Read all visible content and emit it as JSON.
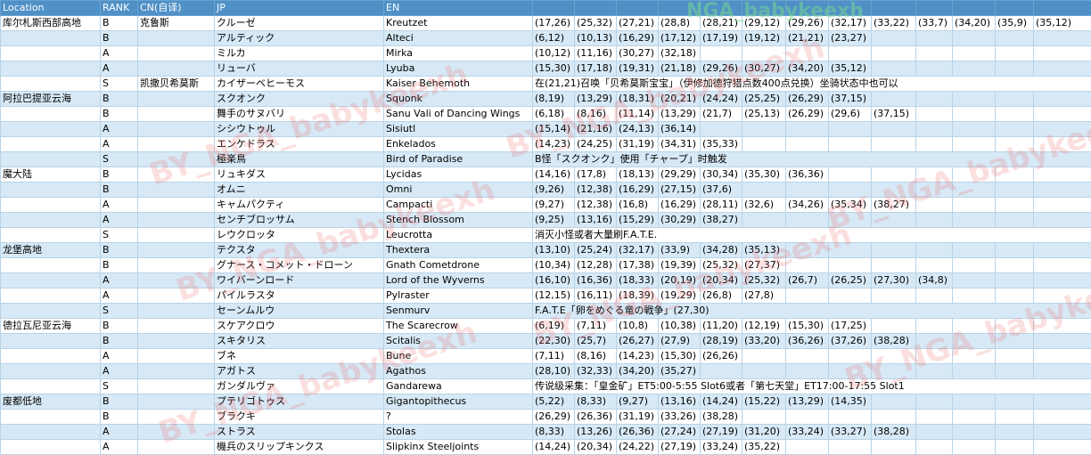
{
  "headers": [
    "Location",
    "RANK",
    "CN(自译)",
    "JP",
    "EN"
  ],
  "watermarks": [
    "BY_NGA_babykeexh",
    "NGA_babykeexh"
  ],
  "rows": [
    {
      "loc": "库尔札斯西部高地",
      "rank": "B",
      "cn": "克鲁斯",
      "jp": "クルーゼ",
      "en": "Kreutzet",
      "pos": [
        "(17,26)",
        "(25,32)",
        "(27,21)",
        "(28,8)",
        "(28,21)",
        "(29,12)",
        "(29,26)",
        "(32,17)",
        "(33,22)",
        "(33,7)",
        "(34,20)",
        "(35,9)",
        "(35,12)"
      ]
    },
    {
      "loc": "",
      "rank": "B",
      "cn": "",
      "jp": "アルティック",
      "en": "Alteci",
      "pos": [
        "(6,12)",
        "(10,13)",
        "(16,29)",
        "(17,12)",
        "(17,19)",
        "(19,12)",
        "(21,21)",
        "(23,27)"
      ]
    },
    {
      "loc": "",
      "rank": "A",
      "cn": "",
      "jp": "ミルカ",
      "en": "Mirka",
      "pos": [
        "(10,12)",
        "(11,16)",
        "(30,27)",
        "(32,18)"
      ]
    },
    {
      "loc": "",
      "rank": "A",
      "cn": "",
      "jp": "リューバ",
      "en": "Lyuba",
      "pos": [
        "(15,30)",
        "(17,18)",
        "(19,31)",
        "(21,18)",
        "(29,26)",
        "(30,27)",
        "(34,20)",
        "(35,12)"
      ]
    },
    {
      "loc": "",
      "rank": "S",
      "cn": "凯撒贝希莫斯",
      "jp": "カイザーベヒーモス",
      "en": "Kaiser Behemoth",
      "note": "在(21,21)召唤「贝希莫斯宝宝」（伊修加德狩猎点数400点兑换）坐骑状态中也可以"
    },
    {
      "loc": "阿拉巴提亚云海",
      "rank": "B",
      "cn": "",
      "jp": "スクオンク",
      "en": "Squonk",
      "pos": [
        "(8,19)",
        "(13,29)",
        "(18,31)",
        "(20,21)",
        "(24,24)",
        "(25,25)",
        "(26,29)",
        "(37,15)"
      ]
    },
    {
      "loc": "",
      "rank": "B",
      "cn": "",
      "jp": "舞手のサヌバリ",
      "en": "Sanu Vali of Dancing Wings",
      "pos": [
        "(6,18)",
        "(8,16)",
        "(11,14)",
        "(13,29)",
        "(21,7)",
        "(25,13)",
        "(26,29)",
        "(29,6)",
        "(37,15)"
      ]
    },
    {
      "loc": "",
      "rank": "A",
      "cn": "",
      "jp": "シシウトゥル",
      "en": "Sisiutl",
      "pos": [
        "(15,14)",
        "(21,16)",
        "(24,13)",
        "(36,14)"
      ]
    },
    {
      "loc": "",
      "rank": "A",
      "cn": "",
      "jp": "エンケドラス",
      "en": "Enkelados",
      "pos": [
        "(14,23)",
        "(24,25)",
        "(31,19)",
        "(34,31)",
        "(35,33)"
      ]
    },
    {
      "loc": "",
      "rank": "S",
      "cn": "",
      "jp": "極楽鳥",
      "en": "Bird of Paradise",
      "note": "B怪「スクオンク」使用「チャープ」时触发"
    },
    {
      "loc": "魔大陆",
      "rank": "B",
      "cn": "",
      "jp": "リュキダス",
      "en": "Lycidas",
      "pos": [
        "(14,16)",
        "(17,8)",
        "(18,13)",
        "(29,29)",
        "(30,34)",
        "(35,30)",
        "(36,36)"
      ]
    },
    {
      "loc": "",
      "rank": "B",
      "cn": "",
      "jp": "オムニ",
      "en": "Omni",
      "pos": [
        "(9,26)",
        "(12,38)",
        "(16,29)",
        "(27,15)",
        "(37,6)"
      ]
    },
    {
      "loc": "",
      "rank": "A",
      "cn": "",
      "jp": "キャムパクティ",
      "en": "Campacti",
      "pos": [
        "(9,27)",
        "(12,38)",
        "(16,8)",
        "(16,29)",
        "(28,11)",
        "(32,6)",
        "(34,26)",
        "(35,34)",
        "(38,27)"
      ]
    },
    {
      "loc": "",
      "rank": "A",
      "cn": "",
      "jp": "センチブロッサム",
      "en": "Stench Blossom",
      "pos": [
        "(9,25)",
        "(13,16)",
        "(15,29)",
        "(30,29)",
        "(38,27)"
      ]
    },
    {
      "loc": "",
      "rank": "S",
      "cn": "",
      "jp": "レウクロッタ",
      "en": "Leucrotta",
      "note": "消灭小怪或者大量刷F.A.T.E."
    },
    {
      "loc": "龙堡高地",
      "rank": "B",
      "cn": "",
      "jp": "テクスタ",
      "en": "Thextera",
      "pos": [
        "(13,10)",
        "(25,24)",
        "(32,17)",
        "(33,9)",
        "(34,28)",
        "(35,13)"
      ]
    },
    {
      "loc": "",
      "rank": "B",
      "cn": "",
      "jp": "グナース・コメット・ドローン",
      "en": "Gnath Cometdrone",
      "pos": [
        "(10,34)",
        "(12,28)",
        "(17,38)",
        "(19,39)",
        "(25,32)",
        "(27,37)"
      ]
    },
    {
      "loc": "",
      "rank": "A",
      "cn": "",
      "jp": "ワイバーンロード",
      "en": "Lord of the Wyverns",
      "pos": [
        "(16,10)",
        "(16,36)",
        "(18,33)",
        "(20,19)",
        "(20,34)",
        "(25,32)",
        "(26,7)",
        "(26,25)",
        "(27,30)",
        "(34,8)"
      ]
    },
    {
      "loc": "",
      "rank": "A",
      "cn": "",
      "jp": "パイルラスタ",
      "en": "Pylraster",
      "pos": [
        "(12,15)",
        "(16,11)",
        "(18,39)",
        "(19,29)",
        "(26,8)",
        "(27,8)"
      ]
    },
    {
      "loc": "",
      "rank": "S",
      "cn": "",
      "jp": "セーンムルウ",
      "en": "Senmurv",
      "note": "F.A.T.E「卵をめぐる竜の戦争」(27,30)"
    },
    {
      "loc": "德拉瓦尼亚云海",
      "rank": "B",
      "cn": "",
      "jp": "スケアクロウ",
      "en": "The Scarecrow",
      "pos": [
        "(6,19)",
        "(7,11)",
        "(10,8)",
        "(10,38)",
        "(11,20)",
        "(12,19)",
        "(15,30)",
        "(17,25)"
      ]
    },
    {
      "loc": "",
      "rank": "B",
      "cn": "",
      "jp": "スキタリス",
      "en": "Scitalis",
      "pos": [
        "(22,30)",
        "(25,7)",
        "(26,27)",
        "(27,9)",
        "(28,19)",
        "(33,20)",
        "(36,26)",
        "(37,26)",
        "(38,28)"
      ]
    },
    {
      "loc": "",
      "rank": "A",
      "cn": "",
      "jp": "ブネ",
      "en": "Bune",
      "pos": [
        "(7,11)",
        "(8,16)",
        "(14,23)",
        "(15,30)",
        "(26,26)"
      ]
    },
    {
      "loc": "",
      "rank": "A",
      "cn": "",
      "jp": "アガトス",
      "en": "Agathos",
      "pos": [
        "(28,10)",
        "(32,33)",
        "(34,20)",
        "(35,27)"
      ]
    },
    {
      "loc": "",
      "rank": "S",
      "cn": "",
      "jp": "ガンダルヴァ",
      "en": "Gandarewa",
      "note": "传说级采集：「皇金矿」ET5:00-5:55 Slot6或者「第七天堂」ET17:00-17:55 Slot1"
    },
    {
      "loc": "废都低地",
      "rank": "B",
      "cn": "",
      "jp": "プテリゴトゥス",
      "en": "Gigantopithecus",
      "pos": [
        "(5,22)",
        "(8,33)",
        "(9,27)",
        "(13,16)",
        "(14,24)",
        "(15,22)",
        "(13,29)",
        "(14,35)"
      ]
    },
    {
      "loc": "",
      "rank": "B",
      "cn": "",
      "jp": "ブラクキ",
      "en": "?",
      "pos": [
        "(26,29)",
        "(26,36)",
        "(31,19)",
        "(33,26)",
        "(38,28)"
      ]
    },
    {
      "loc": "",
      "rank": "A",
      "cn": "",
      "jp": "ストラス",
      "en": "Stolas",
      "pos": [
        "(8,33)",
        "(13,26)",
        "(26,36)",
        "(27,24)",
        "(27,19)",
        "(31,20)",
        "(33,24)",
        "(33,27)",
        "(38,28)"
      ]
    },
    {
      "loc": "",
      "rank": "A",
      "cn": "",
      "jp": "機兵のスリップキンクス",
      "en": "Slipkinx Steeljoints",
      "pos": [
        "(14,24)",
        "(20,34)",
        "(24,22)",
        "(27,19)",
        "(33,24)",
        "(35,22)"
      ]
    }
  ]
}
